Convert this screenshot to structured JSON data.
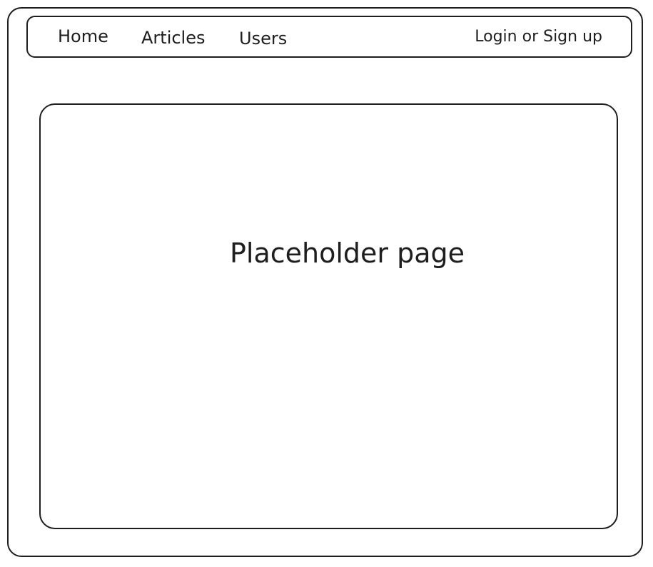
{
  "nav": {
    "home": "Home",
    "articles": "Articles",
    "users": "Users",
    "auth": "Login or Sign up"
  },
  "main": {
    "placeholder": "Placeholder page"
  }
}
